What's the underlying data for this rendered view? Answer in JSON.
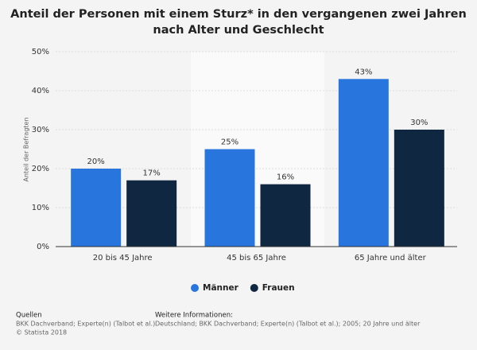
{
  "chart_data": {
    "type": "bar",
    "title_lines": [
      "Anteil der Personen mit einem Sturz* in den vergangenen zwei Jahren",
      "nach Alter und Geschlecht"
    ],
    "y_label": "Anteil der Befragten",
    "categories": [
      "20 bis 45 Jahre",
      "45 bis 65 Jahre",
      "65 Jahre und älter"
    ],
    "series": [
      {
        "name": "Männer",
        "color": "#2876dd",
        "values": [
          20,
          25,
          43
        ],
        "value_labels": [
          "20%",
          "25%",
          "43%"
        ]
      },
      {
        "name": "Frauen",
        "color": "#0f2741",
        "values": [
          17,
          16,
          30
        ],
        "value_labels": [
          "17%",
          "16%",
          "30%"
        ]
      }
    ],
    "ylim": [
      0,
      50
    ],
    "yticks": [
      {
        "value": 0,
        "label": "0%"
      },
      {
        "value": 10,
        "label": "10%"
      },
      {
        "value": 20,
        "label": "20%"
      },
      {
        "value": 30,
        "label": "30%"
      },
      {
        "value": 40,
        "label": "40%"
      },
      {
        "value": 50,
        "label": "50%"
      }
    ],
    "grid": true
  },
  "footer": {
    "sources_title": "Quellen",
    "sources": [
      "BKK Dachverband; Experte(n) (Talbot et al.)",
      "© Statista 2018"
    ],
    "info_title": "Weitere Informationen:",
    "info": "Deutschland; BKK Dachverband; Experte(n) (Talbot et al.); 2005; 20 Jahre und älter"
  }
}
